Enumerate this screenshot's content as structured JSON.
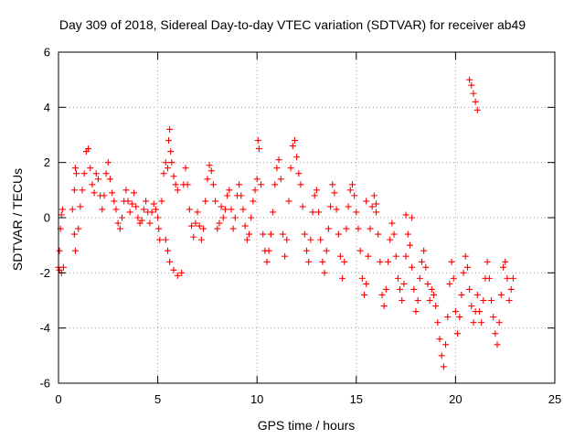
{
  "chart_data": {
    "type": "scatter",
    "title": "Day 309 of 2018, Sidereal Day-to-day VTEC variation (SDTVAR) for receiver ab49",
    "xlabel": "GPS time / hours",
    "ylabel": "SDTVAR / TECUs",
    "xlim": [
      0,
      25
    ],
    "ylim": [
      -6,
      6
    ],
    "xticks": [
      0,
      5,
      10,
      15,
      20,
      25
    ],
    "yticks": [
      -6,
      -4,
      -2,
      0,
      2,
      4,
      6
    ],
    "grid": true,
    "marker": "+",
    "color": "#ff0000",
    "series": [
      {
        "name": "SDTVAR",
        "points": [
          [
            0.0,
            -1.8
          ],
          [
            0.05,
            -1.2
          ],
          [
            0.1,
            -0.4
          ],
          [
            0.15,
            0.1
          ],
          [
            0.2,
            0.3
          ],
          [
            0.05,
            -1.9
          ],
          [
            0.15,
            -2.0
          ],
          [
            0.25,
            -1.8
          ],
          [
            0.7,
            0.3
          ],
          [
            0.8,
            1.0
          ],
          [
            0.85,
            1.8
          ],
          [
            0.9,
            1.6
          ],
          [
            0.8,
            -0.6
          ],
          [
            0.85,
            -1.2
          ],
          [
            1.0,
            -0.4
          ],
          [
            1.1,
            0.4
          ],
          [
            1.2,
            1.0
          ],
          [
            1.3,
            1.6
          ],
          [
            1.4,
            2.4
          ],
          [
            1.5,
            2.5
          ],
          [
            1.6,
            1.8
          ],
          [
            1.7,
            1.2
          ],
          [
            1.8,
            0.9
          ],
          [
            1.9,
            1.6
          ],
          [
            2.0,
            1.4
          ],
          [
            2.1,
            0.8
          ],
          [
            2.2,
            0.3
          ],
          [
            2.3,
            0.8
          ],
          [
            2.4,
            1.6
          ],
          [
            2.5,
            2.0
          ],
          [
            2.6,
            1.4
          ],
          [
            2.7,
            0.9
          ],
          [
            2.8,
            0.6
          ],
          [
            2.9,
            0.3
          ],
          [
            3.0,
            -0.2
          ],
          [
            3.1,
            -0.4
          ],
          [
            3.2,
            0.0
          ],
          [
            3.3,
            0.6
          ],
          [
            3.4,
            1.0
          ],
          [
            3.5,
            0.6
          ],
          [
            3.6,
            0.2
          ],
          [
            3.7,
            0.5
          ],
          [
            3.8,
            0.9
          ],
          [
            3.9,
            0.4
          ],
          [
            4.0,
            0.0
          ],
          [
            4.1,
            -0.2
          ],
          [
            4.2,
            -0.1
          ],
          [
            4.3,
            0.3
          ],
          [
            4.4,
            0.6
          ],
          [
            4.5,
            0.2
          ],
          [
            4.6,
            -0.2
          ],
          [
            4.7,
            0.2
          ],
          [
            4.8,
            0.5
          ],
          [
            4.9,
            0.3
          ],
          [
            5.0,
            0.0
          ],
          [
            5.05,
            -0.4
          ],
          [
            5.1,
            -0.8
          ],
          [
            5.2,
            0.6
          ],
          [
            5.3,
            1.6
          ],
          [
            5.4,
            2.0
          ],
          [
            5.5,
            1.8
          ],
          [
            5.55,
            2.8
          ],
          [
            5.6,
            3.2
          ],
          [
            5.65,
            2.4
          ],
          [
            5.7,
            2.0
          ],
          [
            5.8,
            1.5
          ],
          [
            5.9,
            1.2
          ],
          [
            6.0,
            1.0
          ],
          [
            5.4,
            -0.8
          ],
          [
            5.5,
            -1.2
          ],
          [
            5.6,
            -1.6
          ],
          [
            5.8,
            -1.9
          ],
          [
            6.0,
            -2.1
          ],
          [
            6.2,
            -2.0
          ],
          [
            6.3,
            1.2
          ],
          [
            6.4,
            1.8
          ],
          [
            6.5,
            1.2
          ],
          [
            6.6,
            0.3
          ],
          [
            6.7,
            -0.3
          ],
          [
            6.8,
            -0.7
          ],
          [
            6.9,
            -0.2
          ],
          [
            7.0,
            0.2
          ],
          [
            7.1,
            -0.3
          ],
          [
            7.2,
            -0.8
          ],
          [
            7.3,
            -0.4
          ],
          [
            7.4,
            0.6
          ],
          [
            7.5,
            1.4
          ],
          [
            7.6,
            1.9
          ],
          [
            7.7,
            1.7
          ],
          [
            7.8,
            1.2
          ],
          [
            7.9,
            0.6
          ],
          [
            8.0,
            -0.4
          ],
          [
            8.1,
            -0.2
          ],
          [
            8.2,
            0.4
          ],
          [
            8.3,
            0.0
          ],
          [
            8.4,
            0.3
          ],
          [
            8.5,
            0.8
          ],
          [
            8.6,
            1.0
          ],
          [
            8.7,
            0.3
          ],
          [
            8.8,
            -0.4
          ],
          [
            8.9,
            0.0
          ],
          [
            9.0,
            0.8
          ],
          [
            9.1,
            1.2
          ],
          [
            9.2,
            0.8
          ],
          [
            9.3,
            0.3
          ],
          [
            9.4,
            -0.3
          ],
          [
            9.5,
            -0.8
          ],
          [
            9.6,
            -0.6
          ],
          [
            9.7,
            0.0
          ],
          [
            9.8,
            0.6
          ],
          [
            9.9,
            1.0
          ],
          [
            10.0,
            1.4
          ],
          [
            10.05,
            2.8
          ],
          [
            10.1,
            2.5
          ],
          [
            10.2,
            1.2
          ],
          [
            10.3,
            -0.6
          ],
          [
            10.4,
            -1.2
          ],
          [
            10.5,
            -1.6
          ],
          [
            10.6,
            -1.2
          ],
          [
            10.7,
            -0.6
          ],
          [
            10.8,
            0.2
          ],
          [
            10.9,
            1.2
          ],
          [
            11.0,
            1.8
          ],
          [
            11.1,
            2.1
          ],
          [
            11.2,
            1.4
          ],
          [
            11.3,
            -0.6
          ],
          [
            11.4,
            -1.4
          ],
          [
            11.5,
            -0.8
          ],
          [
            11.6,
            0.6
          ],
          [
            11.7,
            1.8
          ],
          [
            11.8,
            2.6
          ],
          [
            11.9,
            2.8
          ],
          [
            12.0,
            2.2
          ],
          [
            12.1,
            1.6
          ],
          [
            12.2,
            1.2
          ],
          [
            12.3,
            0.4
          ],
          [
            12.4,
            -0.6
          ],
          [
            12.5,
            -1.2
          ],
          [
            12.6,
            -1.6
          ],
          [
            12.7,
            -0.8
          ],
          [
            12.8,
            0.2
          ],
          [
            12.9,
            0.8
          ],
          [
            13.0,
            1.0
          ],
          [
            13.1,
            0.2
          ],
          [
            13.2,
            -0.8
          ],
          [
            13.3,
            -1.6
          ],
          [
            13.4,
            -2.0
          ],
          [
            13.5,
            -1.2
          ],
          [
            13.6,
            -0.4
          ],
          [
            13.7,
            0.4
          ],
          [
            13.8,
            1.2
          ],
          [
            13.9,
            0.9
          ],
          [
            14.0,
            0.3
          ],
          [
            14.1,
            -0.6
          ],
          [
            14.2,
            -1.4
          ],
          [
            14.3,
            -2.2
          ],
          [
            14.4,
            -1.6
          ],
          [
            14.5,
            -0.4
          ],
          [
            14.6,
            0.4
          ],
          [
            14.7,
            1.0
          ],
          [
            14.8,
            1.2
          ],
          [
            14.9,
            0.8
          ],
          [
            15.0,
            0.2
          ],
          [
            15.1,
            -0.4
          ],
          [
            15.2,
            -1.2
          ],
          [
            15.3,
            -2.2
          ],
          [
            15.4,
            -2.8
          ],
          [
            15.5,
            -2.4
          ],
          [
            15.6,
            -1.4
          ],
          [
            15.7,
            -0.4
          ],
          [
            15.8,
            0.4
          ],
          [
            15.9,
            0.8
          ],
          [
            16.0,
            0.2
          ],
          [
            16.1,
            -0.6
          ],
          [
            16.2,
            -1.6
          ],
          [
            16.3,
            -2.8
          ],
          [
            16.4,
            -3.2
          ],
          [
            16.5,
            -2.6
          ],
          [
            16.6,
            -1.6
          ],
          [
            16.7,
            -0.8
          ],
          [
            16.8,
            -0.2
          ],
          [
            16.9,
            -0.6
          ],
          [
            17.0,
            -1.4
          ],
          [
            17.1,
            -2.2
          ],
          [
            17.2,
            -2.6
          ],
          [
            17.3,
            -3.0
          ],
          [
            17.4,
            -2.4
          ],
          [
            17.5,
            -1.4
          ],
          [
            17.6,
            -0.6
          ],
          [
            17.7,
            -1.0
          ],
          [
            17.8,
            -1.8
          ],
          [
            17.9,
            -2.6
          ],
          [
            18.0,
            -3.4
          ],
          [
            18.1,
            -3.0
          ],
          [
            18.2,
            -2.2
          ],
          [
            18.3,
            -1.6
          ],
          [
            18.4,
            -1.2
          ],
          [
            18.5,
            -1.8
          ],
          [
            18.6,
            -2.4
          ],
          [
            18.7,
            -3.0
          ],
          [
            18.8,
            -2.6
          ],
          [
            18.9,
            -2.8
          ],
          [
            19.0,
            -3.2
          ],
          [
            19.1,
            -3.8
          ],
          [
            19.2,
            -4.4
          ],
          [
            19.3,
            -5.0
          ],
          [
            19.4,
            -5.4
          ],
          [
            19.5,
            -4.6
          ],
          [
            19.6,
            -3.6
          ],
          [
            19.7,
            -2.4
          ],
          [
            19.8,
            -1.6
          ],
          [
            19.9,
            -2.2
          ],
          [
            20.0,
            -3.4
          ],
          [
            20.1,
            -4.2
          ],
          [
            20.2,
            -3.6
          ],
          [
            20.3,
            -2.8
          ],
          [
            20.4,
            -2.0
          ],
          [
            20.5,
            -1.4
          ],
          [
            20.6,
            -1.8
          ],
          [
            20.7,
            -2.6
          ],
          [
            20.8,
            -3.2
          ],
          [
            20.9,
            -3.8
          ],
          [
            21.0,
            -3.4
          ],
          [
            21.1,
            -2.8
          ],
          [
            21.2,
            -3.4
          ],
          [
            21.3,
            -3.8
          ],
          [
            21.4,
            -3.0
          ],
          [
            21.5,
            -2.2
          ],
          [
            21.6,
            -1.6
          ],
          [
            21.7,
            -2.2
          ],
          [
            21.8,
            -3.0
          ],
          [
            21.9,
            -3.6
          ],
          [
            22.0,
            -4.2
          ],
          [
            22.1,
            -4.6
          ],
          [
            22.2,
            -3.8
          ],
          [
            22.3,
            -2.8
          ],
          [
            22.4,
            -1.8
          ],
          [
            22.5,
            -1.6
          ],
          [
            22.6,
            -2.2
          ],
          [
            22.7,
            -3.0
          ],
          [
            22.8,
            -2.6
          ],
          [
            22.9,
            -2.2
          ],
          [
            20.7,
            5.0
          ],
          [
            20.8,
            4.8
          ],
          [
            20.9,
            4.5
          ],
          [
            21.0,
            4.2
          ],
          [
            21.1,
            3.9
          ],
          [
            17.5,
            0.1
          ],
          [
            17.8,
            0.0
          ],
          [
            16.0,
            0.5
          ],
          [
            15.5,
            0.6
          ]
        ]
      }
    ]
  }
}
